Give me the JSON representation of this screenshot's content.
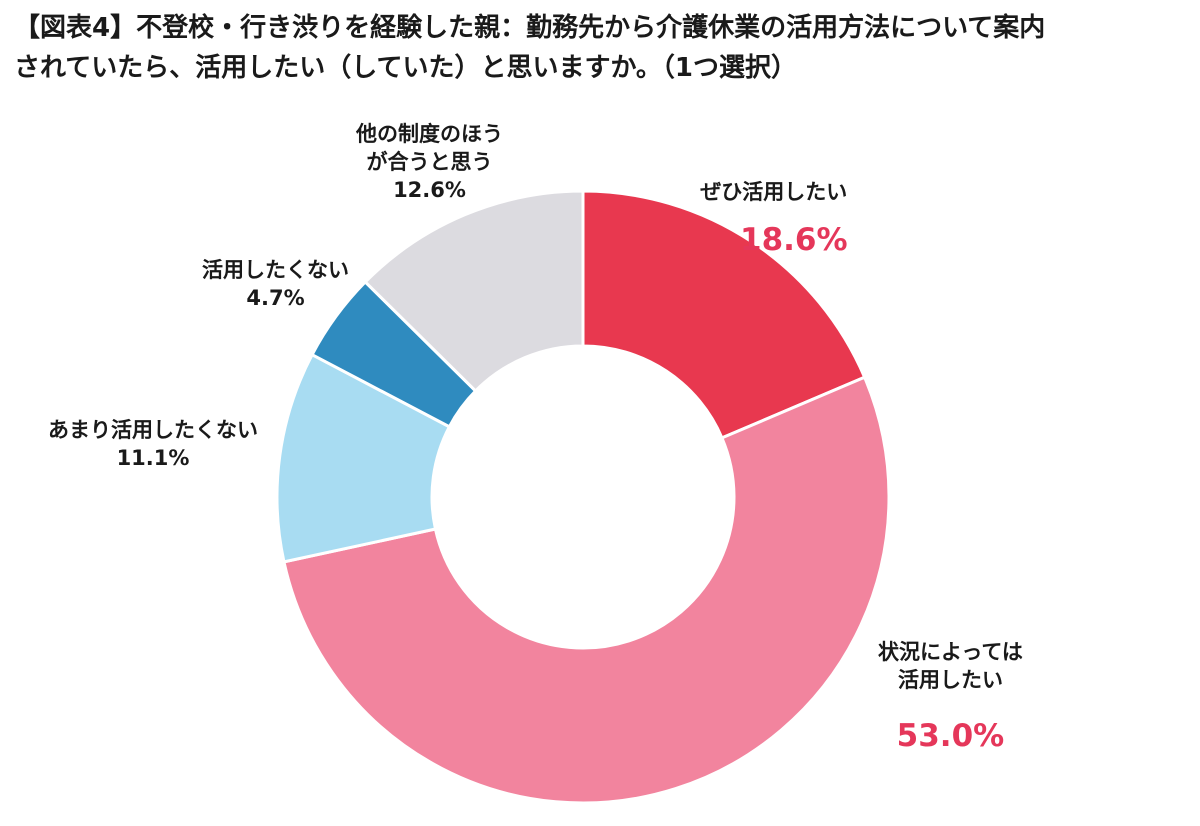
{
  "title": {
    "line1": "【図表4】不登校・行き渋りを経験した親：勤務先から介護休業の活用方法について案内",
    "line2": "されていたら、活用したい（していた）と思いますか。（1つ選択）"
  },
  "chart_data": {
    "type": "pie",
    "donut": true,
    "slices": [
      {
        "label": "ぜひ活用したい",
        "value": 18.6,
        "value_label": "18.6%",
        "color": "#e8384f"
      },
      {
        "label_lines": [
          "状況によっては",
          "活用したい"
        ],
        "value": 53.0,
        "value_label": "53.0%",
        "color": "#f2849e"
      },
      {
        "label": "あまり活用したくない",
        "value": 11.1,
        "value_label": "11.1%",
        "color": "#a8dcf2"
      },
      {
        "label": "活用したくない",
        "value": 4.7,
        "value_label": "4.7%",
        "color": "#2f8bbf"
      },
      {
        "label_lines": [
          "他の制度のほう",
          "が合うと思う"
        ],
        "value": 12.6,
        "value_label": "12.6%",
        "color": "#dcdbe0"
      }
    ]
  }
}
